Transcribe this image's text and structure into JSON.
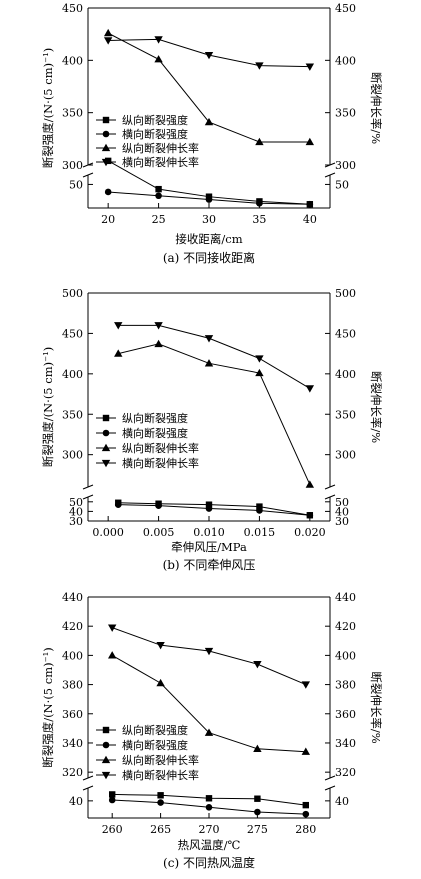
{
  "chart_data": [
    {
      "type": "line",
      "caption": "(a) 不同接收距离",
      "xlabel": "接收距离/cm",
      "ylabel": "断裂强度/(N·(5 cm)⁻¹)",
      "y2label": "断裂伸长率/%",
      "x": [
        20,
        25,
        30,
        35,
        40
      ],
      "xticks": [
        "20",
        "25",
        "30",
        "35",
        "40"
      ],
      "xlim": [
        18,
        42
      ],
      "break": {
        "lower": [
          25,
          60
        ],
        "upper": [
          300,
          450
        ]
      },
      "yticks_lower": [
        50
      ],
      "yticks_upper": [
        300,
        350,
        400,
        450
      ],
      "legend": "left",
      "series": [
        {
          "name": "纵向断裂强度",
          "marker": "square",
          "axis": "left",
          "values": [
            75,
            45,
            37,
            32,
            29
          ]
        },
        {
          "name": "横向断裂强度",
          "marker": "circle",
          "axis": "left",
          "values": [
            42,
            38,
            34,
            30,
            29
          ]
        },
        {
          "name": "纵向断裂伸长率",
          "marker": "triangle-up",
          "axis": "right",
          "values": [
            426,
            401,
            341,
            322,
            322
          ]
        },
        {
          "name": "横向断裂伸长率",
          "marker": "triangle-down",
          "axis": "right",
          "values": [
            419,
            420,
            405,
            395,
            394
          ]
        }
      ]
    },
    {
      "type": "line",
      "caption": "(b) 不同牵伸风压",
      "xlabel": "牵伸风压/MPa",
      "ylabel": "断裂强度/(N·(5 cm)⁻¹)",
      "y2label": "断裂伸长率/%",
      "x": [
        0.001,
        0.005,
        0.01,
        0.015,
        0.02
      ],
      "xticks": [
        "0.000",
        "0.005",
        "0.010",
        "0.015",
        "0.020"
      ],
      "xtick_values": [
        0,
        0.005,
        0.01,
        0.015,
        0.02
      ],
      "xlim": [
        -0.002,
        0.022
      ],
      "break": {
        "lower": [
          30,
          55
        ],
        "upper": [
          260,
          500
        ]
      },
      "yticks_lower": [
        30,
        40,
        50
      ],
      "yticks_upper": [
        300,
        350,
        400,
        450,
        500
      ],
      "legend": "left",
      "series": [
        {
          "name": "纵向断裂强度",
          "marker": "square",
          "axis": "left",
          "values": [
            49,
            48,
            47,
            45,
            36
          ]
        },
        {
          "name": "横向断裂强度",
          "marker": "circle",
          "axis": "left",
          "values": [
            47,
            46,
            43,
            41,
            36
          ]
        },
        {
          "name": "纵向断裂伸长率",
          "marker": "triangle-up",
          "axis": "right",
          "values": [
            425,
            437,
            413,
            401,
            263
          ]
        },
        {
          "name": "横向断裂伸长率",
          "marker": "triangle-down",
          "axis": "right",
          "values": [
            460,
            460,
            444,
            419,
            382
          ]
        }
      ]
    },
    {
      "type": "line",
      "caption": "(c) 不同热风温度",
      "xlabel": "热风温度/℃",
      "ylabel": "断裂强度/(N·(5 cm)⁻¹)",
      "y2label": "断裂伸长率/%",
      "x": [
        260,
        265,
        270,
        275,
        280
      ],
      "xticks": [
        "260",
        "265",
        "270",
        "275",
        "280"
      ],
      "xlim": [
        257.5,
        282.5
      ],
      "break": {
        "lower": [
          36,
          43
        ],
        "upper": [
          316,
          440
        ]
      },
      "yticks_lower": [
        40
      ],
      "yticks_upper": [
        320,
        340,
        360,
        380,
        400,
        420,
        440
      ],
      "legend": "left",
      "series": [
        {
          "name": "纵向断裂强度",
          "marker": "square",
          "axis": "left",
          "values": [
            41.5,
            41.3,
            40.6,
            40.5,
            39.0
          ]
        },
        {
          "name": "横向断裂强度",
          "marker": "circle",
          "axis": "left",
          "values": [
            40.2,
            39.6,
            38.5,
            37.4,
            36.9
          ]
        },
        {
          "name": "纵向断裂伸长率",
          "marker": "triangle-up",
          "axis": "right",
          "values": [
            400,
            381,
            347,
            336,
            334
          ]
        },
        {
          "name": "横向断裂伸长率",
          "marker": "triangle-down",
          "axis": "right",
          "values": [
            419,
            407,
            403,
            394,
            380
          ]
        }
      ]
    }
  ]
}
